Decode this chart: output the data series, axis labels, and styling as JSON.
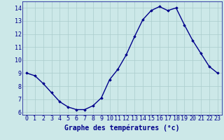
{
  "hours": [
    0,
    1,
    2,
    3,
    4,
    5,
    6,
    7,
    8,
    9,
    10,
    11,
    12,
    13,
    14,
    15,
    16,
    17,
    18,
    19,
    20,
    21,
    22,
    23
  ],
  "temps": [
    9.0,
    8.8,
    8.2,
    7.5,
    6.8,
    6.4,
    6.2,
    6.2,
    6.5,
    7.1,
    8.5,
    9.3,
    10.4,
    11.8,
    13.1,
    13.8,
    14.1,
    13.8,
    14.0,
    12.7,
    11.5,
    10.5,
    9.5,
    9.0
  ],
  "line_color": "#00008b",
  "marker": "D",
  "marker_size": 1.8,
  "bg_color": "#cce8e8",
  "plot_bg_color": "#cce8e8",
  "grid_color": "#aacccc",
  "axis_label_color": "#00008b",
  "tick_color": "#00008b",
  "xlabel": "Graphe des températures (°c)",
  "ylim": [
    5.8,
    14.5
  ],
  "yticks": [
    6,
    7,
    8,
    9,
    10,
    11,
    12,
    13,
    14
  ],
  "xlim": [
    -0.5,
    23.5
  ],
  "line_width": 1.0,
  "xlabel_fontsize": 7.0,
  "tick_fontsize": 6.0
}
